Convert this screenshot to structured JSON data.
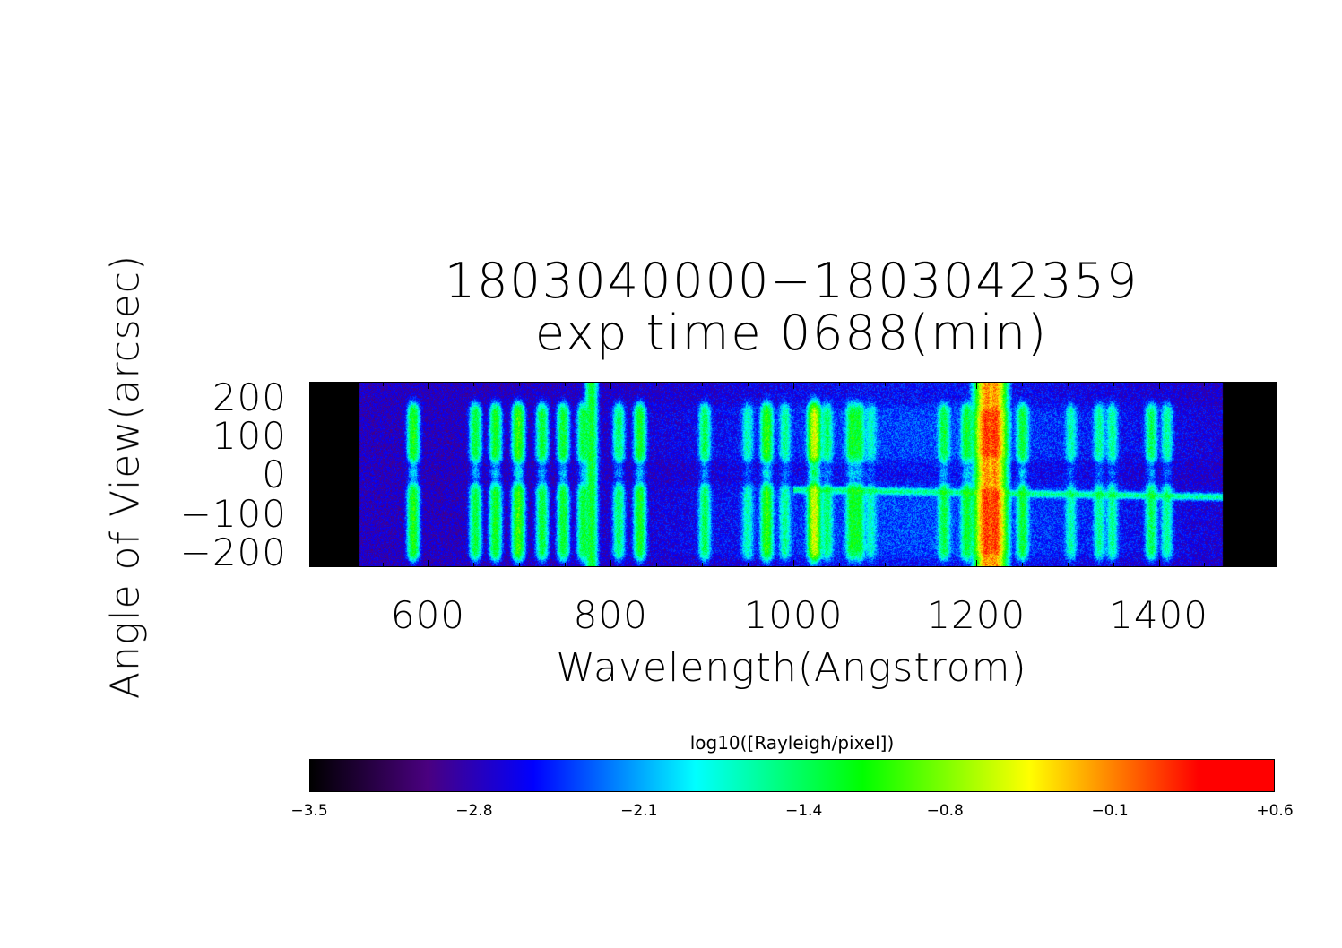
{
  "chart_data": {
    "type": "heatmap",
    "title": "1803040000−1803042359",
    "subtitle": "exp time 0688(min)",
    "xlabel": "Wavelength(Angstrom)",
    "ylabel": "Angle of View(arcsec)",
    "xlim": [
      470,
      1530
    ],
    "ylim": [
      -233,
      246
    ],
    "x_ticks": [
      600,
      800,
      1000,
      1200,
      1400
    ],
    "x_tick_labels": [
      "600",
      "800",
      "1000",
      "1200",
      "1400"
    ],
    "y_ticks": [
      200,
      100,
      0,
      -100,
      -200
    ],
    "y_tick_labels": [
      "200",
      "100",
      "0",
      "−100",
      "−200"
    ],
    "detector_range": [
      525,
      1470
    ],
    "background_level": -2.55,
    "emission_lines": [
      {
        "wavelength": 584,
        "peak": -1.15
      },
      {
        "wavelength": 652,
        "peak": -1.3
      },
      {
        "wavelength": 674,
        "peak": -1.2
      },
      {
        "wavelength": 699,
        "peak": -1.0
      },
      {
        "wavelength": 725,
        "peak": -1.3
      },
      {
        "wavelength": 748,
        "peak": -1.25
      },
      {
        "wavelength": 770,
        "peak": -1.3
      },
      {
        "wavelength": 779,
        "peak": -1.25,
        "full_column": true
      },
      {
        "wavelength": 809,
        "peak": -1.45
      },
      {
        "wavelength": 832,
        "peak": -1.2
      },
      {
        "wavelength": 903,
        "peak": -1.4
      },
      {
        "wavelength": 950,
        "peak": -1.7
      },
      {
        "wavelength": 971,
        "peak": -1.05
      },
      {
        "wavelength": 991,
        "peak": -1.6
      },
      {
        "wavelength": 1023,
        "peak": -0.55
      },
      {
        "wavelength": 1037,
        "peak": -1.5
      },
      {
        "wavelength": 1064,
        "peak": -1.25
      },
      {
        "wavelength": 1072,
        "peak": -1.3
      },
      {
        "wavelength": 1085,
        "peak": -1.8
      },
      {
        "wavelength": 1165,
        "peak": -1.35
      },
      {
        "wavelength": 1190,
        "peak": -1.25
      },
      {
        "wavelength": 1216,
        "peak": 0.35,
        "saturated_ring": true
      },
      {
        "wavelength": 1251,
        "peak": -1.3
      },
      {
        "wavelength": 1304,
        "peak": -1.7
      },
      {
        "wavelength": 1335,
        "peak": -1.6
      },
      {
        "wavelength": 1349,
        "peak": -1.6
      },
      {
        "wavelength": 1392,
        "peak": -1.4
      },
      {
        "wavelength": 1409,
        "peak": -1.6
      }
    ],
    "continuum_stripe": {
      "y": -45,
      "from": 1000,
      "to": 1470,
      "level": -1.6
    },
    "colorbar": {
      "label": "log10([Rayleigh/pixel])",
      "range": [
        -3.5,
        0.6
      ],
      "tick_values": [
        -3.5,
        -2.8,
        -2.1,
        -1.4,
        -0.8,
        -0.1,
        0.6
      ],
      "tick_labels": [
        "−3.5",
        "−2.8",
        "−2.1",
        "−1.4",
        "−0.8",
        "−0.1",
        "+0.6"
      ],
      "colormap_stops": [
        {
          "v": -3.5,
          "color": "#000000"
        },
        {
          "v": -3.0,
          "color": "#4a0080"
        },
        {
          "v": -2.55,
          "color": "#0000ff"
        },
        {
          "v": -1.86,
          "color": "#00ffff"
        },
        {
          "v": -1.15,
          "color": "#00ff00"
        },
        {
          "v": -0.44,
          "color": "#ffff00"
        },
        {
          "v": 0.28,
          "color": "#ff0000"
        },
        {
          "v": 0.6,
          "color": "#ff0000"
        }
      ]
    }
  }
}
